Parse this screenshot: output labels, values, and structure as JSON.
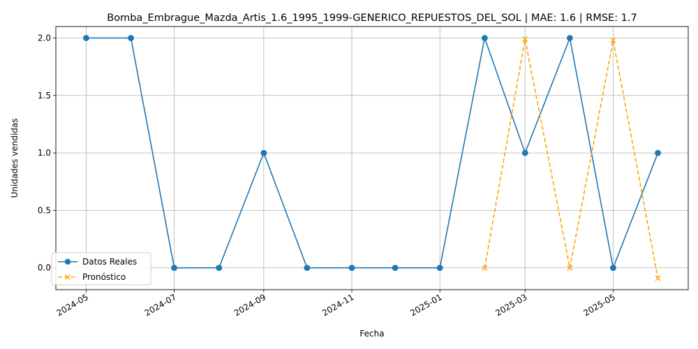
{
  "chart_data": {
    "type": "line",
    "title": "Bomba_Embrague_Mazda_Artis_1.6_1995_1999-GENERICO_REPUESTOS_DEL_SOL | MAE: 1.6 | RMSE: 1.7",
    "xlabel": "Fecha",
    "ylabel": "Unidades vendidas",
    "ylim": [
      -0.19,
      2.1
    ],
    "yticks": [
      "0.0",
      "0.5",
      "1.0",
      "1.5",
      "2.0"
    ],
    "xticks": [
      "2024-05",
      "2024-07",
      "2024-09",
      "2024-11",
      "2025-01",
      "2025-03",
      "2025-05"
    ],
    "grid": true,
    "legend_position": "lower-left",
    "series": [
      {
        "name": "Datos Reales",
        "color": "#1f77b4",
        "style": "solid",
        "marker": "circle",
        "x": [
          "2024-05-01",
          "2024-06-01",
          "2024-07-01",
          "2024-08-01",
          "2024-09-01",
          "2024-10-01",
          "2024-11-01",
          "2024-12-01",
          "2025-01-01",
          "2025-02-01",
          "2025-03-01",
          "2025-04-01",
          "2025-05-01",
          "2025-06-01"
        ],
        "values": [
          2,
          2,
          0,
          0,
          1,
          0,
          0,
          0,
          0,
          2,
          1,
          2,
          0,
          1
        ]
      },
      {
        "name": "Pronóstico",
        "color": "#ffa500",
        "style": "dashed",
        "marker": "x",
        "x": [
          "2025-02-01",
          "2025-03-01",
          "2025-04-01",
          "2025-05-01",
          "2025-06-01"
        ],
        "values": [
          0.0,
          1.99,
          0.0,
          1.98,
          -0.09
        ]
      }
    ]
  }
}
